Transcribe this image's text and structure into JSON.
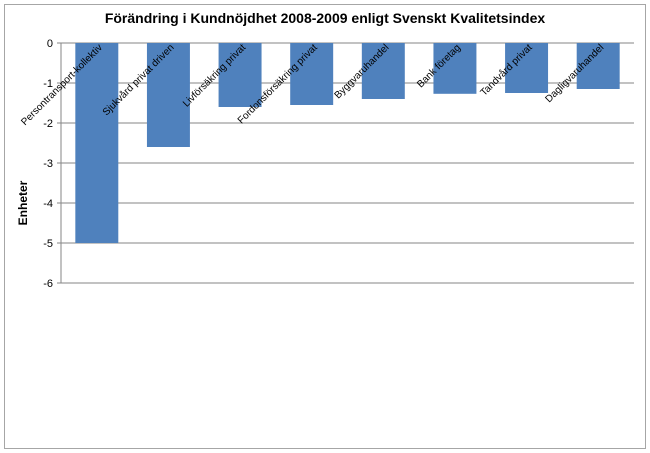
{
  "chart_data": {
    "type": "bar",
    "title": "Förändring i Kundnöjdhet 2008-2009  enligt  Svenskt Kvalitetsindex",
    "xlabel": "",
    "ylabel": "Enheter",
    "ylim": [
      -6,
      0
    ],
    "yticks": [
      0,
      -1,
      -2,
      -3,
      -4,
      -5,
      -6
    ],
    "grid": true,
    "legend": "none",
    "bar_color": "#4f81bd",
    "categories": [
      "Persontransport-kollektiv",
      "Sjukvård privat driven",
      "Livförsäkring privat",
      "Fordonsförsäkring privat",
      "Byggvaruhandel",
      "Bank företag",
      "Tandvård privat",
      "Dagligvaruhandel"
    ],
    "values": [
      -5.0,
      -2.6,
      -1.6,
      -1.55,
      -1.4,
      -1.27,
      -1.25,
      -1.15
    ]
  }
}
